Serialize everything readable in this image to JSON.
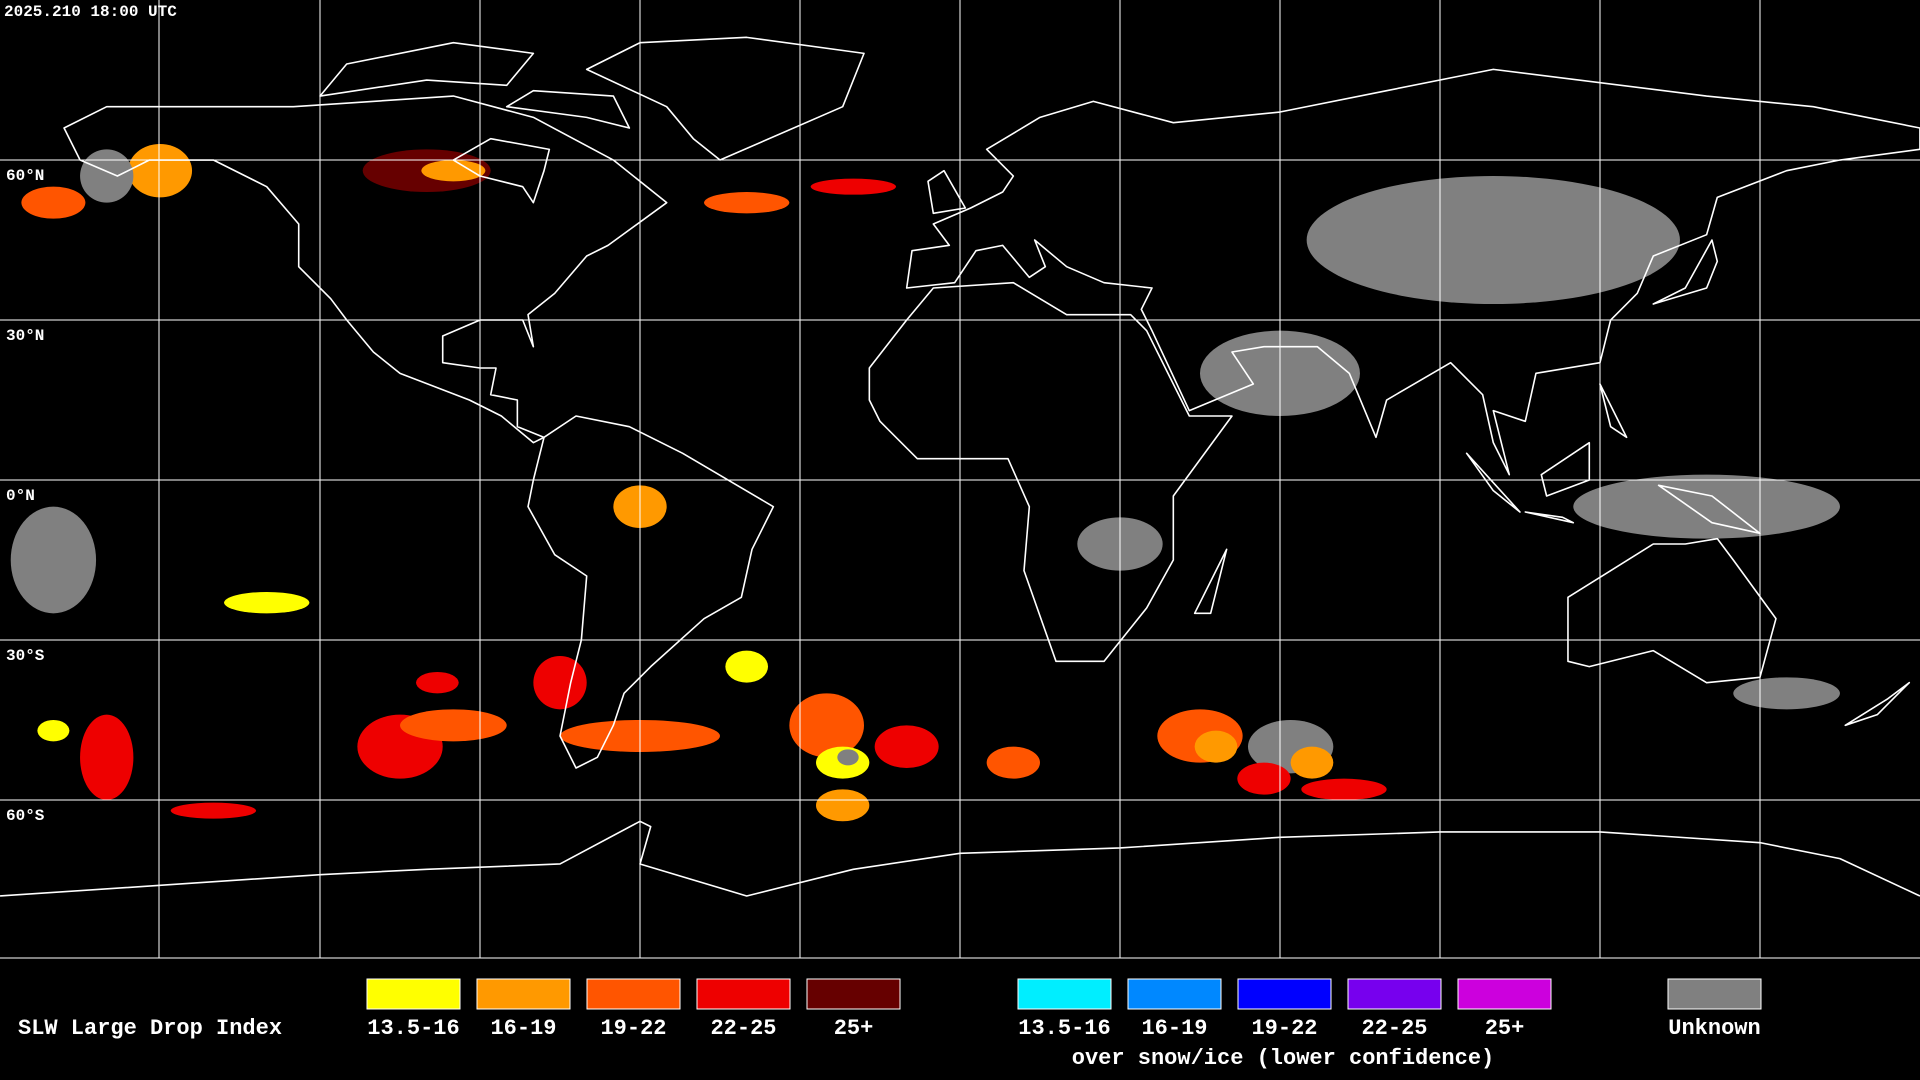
{
  "timestamp": "2025.210 18:00 UTC",
  "latitude_labels": [
    "60°N",
    "30°N",
    "0°N",
    "30°S",
    "60°S"
  ],
  "legend": {
    "title": "SLW Large Drop Index",
    "groups": [
      {
        "items": [
          {
            "label": "13.5-16",
            "color": "#ffff00"
          },
          {
            "label": "16-19",
            "color": "#ff9900"
          },
          {
            "label": "19-22",
            "color": "#ff5500"
          },
          {
            "label": "22-25",
            "color": "#ee0000"
          },
          {
            "label": "25+",
            "color": "#660000"
          }
        ]
      },
      {
        "caption": "over snow/ice (lower confidence)",
        "items": [
          {
            "label": "13.5-16",
            "color": "#00eeff"
          },
          {
            "label": "16-19",
            "color": "#0088ff"
          },
          {
            "label": "19-22",
            "color": "#0000ff"
          },
          {
            "label": "22-25",
            "color": "#7700ee"
          },
          {
            "label": "25+",
            "color": "#cc00dd"
          }
        ]
      },
      {
        "items": [
          {
            "label": "Unknown",
            "color": "#808080"
          }
        ]
      }
    ]
  }
}
